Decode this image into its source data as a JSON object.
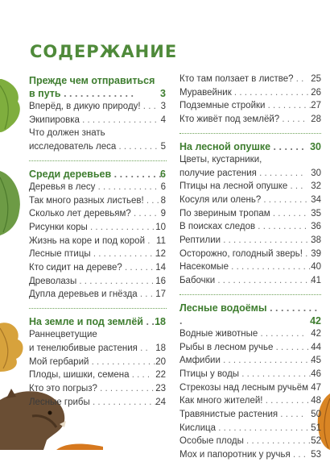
{
  "page_title": "СОДЕРЖАНИЕ",
  "left": [
    {
      "heading": "Прежде чем отправиться в путь",
      "page": "3",
      "items": [
        {
          "label": "Вперёд, в дикую природу!",
          "page": "3"
        },
        {
          "label": "Экипировка",
          "page": "4"
        },
        {
          "label": "Что должен знать исследователь леса",
          "page": "5"
        }
      ]
    },
    {
      "heading": "Среди деревьев",
      "page": "6",
      "items": [
        {
          "label": "Деревья в лесу",
          "page": "6"
        },
        {
          "label": "Так много разных листьев!",
          "page": "8"
        },
        {
          "label": "Сколько лет деревьям?",
          "page": "9"
        },
        {
          "label": "Рисунки коры",
          "page": "10"
        },
        {
          "label": "Жизнь на коре и под корой",
          "page": "11"
        },
        {
          "label": "Лесные птицы",
          "page": "12"
        },
        {
          "label": "Кто сидит на дереве?",
          "page": "14"
        },
        {
          "label": "Древолазы",
          "page": "16"
        },
        {
          "label": "Дупла деревьев и гнёзда",
          "page": "17"
        }
      ]
    },
    {
      "heading": "На земле и под землёй",
      "page": "18",
      "items": [
        {
          "label": "Раннецветущие и тенелюбивые растения",
          "page": "18"
        },
        {
          "label": "Мой гербарий",
          "page": "20"
        },
        {
          "label": "Плоды, шишки, семена",
          "page": "22"
        },
        {
          "label": "Кто это погрыз?",
          "page": "23"
        },
        {
          "label": "Лесные грибы",
          "page": "24"
        }
      ]
    }
  ],
  "right": [
    {
      "heading": "",
      "page": "",
      "items": [
        {
          "label": "Кто там ползает в листве?",
          "page": "25"
        },
        {
          "label": "Муравейник",
          "page": "26"
        },
        {
          "label": "Подземные стройки",
          "page": "27"
        },
        {
          "label": "Кто живёт под землёй?",
          "page": "28"
        }
      ]
    },
    {
      "heading": "На лесной опушке",
      "page": "30",
      "items": [
        {
          "label": "Цветы, кустарники, получие растения",
          "page": "30"
        },
        {
          "label": "Птицы на лесной опушке",
          "page": "32"
        },
        {
          "label": "Косуля или олень?",
          "page": "34"
        },
        {
          "label": "По звериным тропам",
          "page": "35"
        },
        {
          "label": "В поисках следов",
          "page": "36"
        },
        {
          "label": "Рептилии",
          "page": "38"
        },
        {
          "label": "Осторожно, голодный зверь!",
          "page": "39"
        },
        {
          "label": "Насекомые",
          "page": "40"
        },
        {
          "label": "Бабочки",
          "page": "41"
        }
      ]
    },
    {
      "heading": "Лесные водоёмы",
      "page": "42",
      "items": [
        {
          "label": "Водные животные",
          "page": "42"
        },
        {
          "label": "Рыбы в лесном ручье",
          "page": "44"
        },
        {
          "label": "Амфибии",
          "page": "45"
        },
        {
          "label": "Птицы у воды",
          "page": "46"
        },
        {
          "label": "Стрекозы над лесным ручьём",
          "page": "47"
        },
        {
          "label": "Как много жителей!",
          "page": "48"
        },
        {
          "label": "Травянистые растения",
          "page": "50"
        },
        {
          "label": "Кислица",
          "page": "51"
        },
        {
          "label": "Особые плоды",
          "page": "52"
        },
        {
          "label": "Мох и папоротник у ручья",
          "page": "53"
        }
      ]
    }
  ],
  "colors": {
    "heading": "#3e7d2f",
    "title": "#4f8a3a",
    "text": "#3b3b3b"
  }
}
